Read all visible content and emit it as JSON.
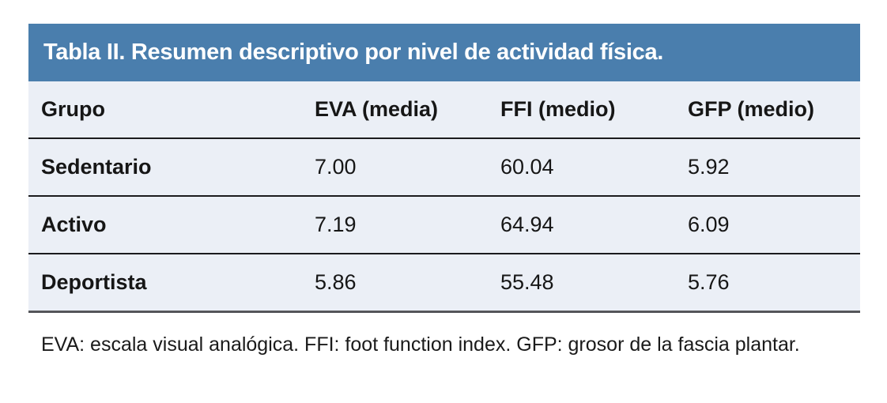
{
  "table": {
    "title": "Tabla II. Resumen descriptivo por nivel de actividad física.",
    "columns": [
      "Grupo",
      "EVA (media)",
      "FFI (medio)",
      "GFP (medio)"
    ],
    "rows": [
      [
        "Sedentario",
        "7.00",
        "60.04",
        "5.92"
      ],
      [
        "Activo",
        "7.19",
        "64.94",
        "6.09"
      ],
      [
        "Deportista",
        "5.86",
        "55.48",
        "5.76"
      ]
    ],
    "footnote": "EVA: escala visual analógica. FFI: foot function index. GFP: grosor de la fascia plantar."
  },
  "chart_data": {
    "type": "table",
    "title": "Tabla II. Resumen descriptivo por nivel de actividad física.",
    "categories": [
      "Sedentario",
      "Activo",
      "Deportista"
    ],
    "series": [
      {
        "name": "EVA (media)",
        "values": [
          7.0,
          7.19,
          5.86
        ]
      },
      {
        "name": "FFI (medio)",
        "values": [
          60.04,
          64.94,
          55.48
        ]
      },
      {
        "name": "GFP (medio)",
        "values": [
          5.92,
          6.09,
          5.76
        ]
      }
    ]
  },
  "colors": {
    "title_bar_bg": "#4a7ead",
    "title_text": "#ffffff",
    "table_bg": "#ebeff6",
    "row_divider": "#1b1b1d",
    "bottom_border": "#55565a",
    "body_text": "#161616",
    "page_bg": "#ffffff"
  }
}
